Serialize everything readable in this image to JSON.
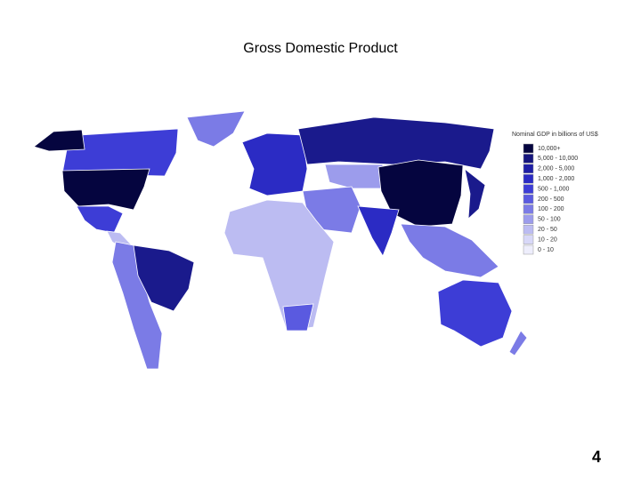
{
  "header": {
    "title": "Gross Domestic Product"
  },
  "legend": {
    "title": "Nominal GDP in billions of US$",
    "items": [
      {
        "label": "10,000+",
        "color": "#05053f"
      },
      {
        "label": "5,000 - 10,000",
        "color": "#16167e"
      },
      {
        "label": "2,000 - 5,000",
        "color": "#1f1fa6"
      },
      {
        "label": "1,000 - 2,000",
        "color": "#2b2bc4"
      },
      {
        "label": "500 - 1,000",
        "color": "#3d3dd6"
      },
      {
        "label": "200 - 500",
        "color": "#5a5ae0"
      },
      {
        "label": "100 - 200",
        "color": "#7b7be6"
      },
      {
        "label": "50 - 100",
        "color": "#9c9cec"
      },
      {
        "label": "20 - 50",
        "color": "#bcbcf2"
      },
      {
        "label": "10 - 20",
        "color": "#d8d8f8"
      },
      {
        "label": "0 - 10",
        "color": "#eeeefc"
      }
    ]
  },
  "footer": {
    "page": "4"
  }
}
